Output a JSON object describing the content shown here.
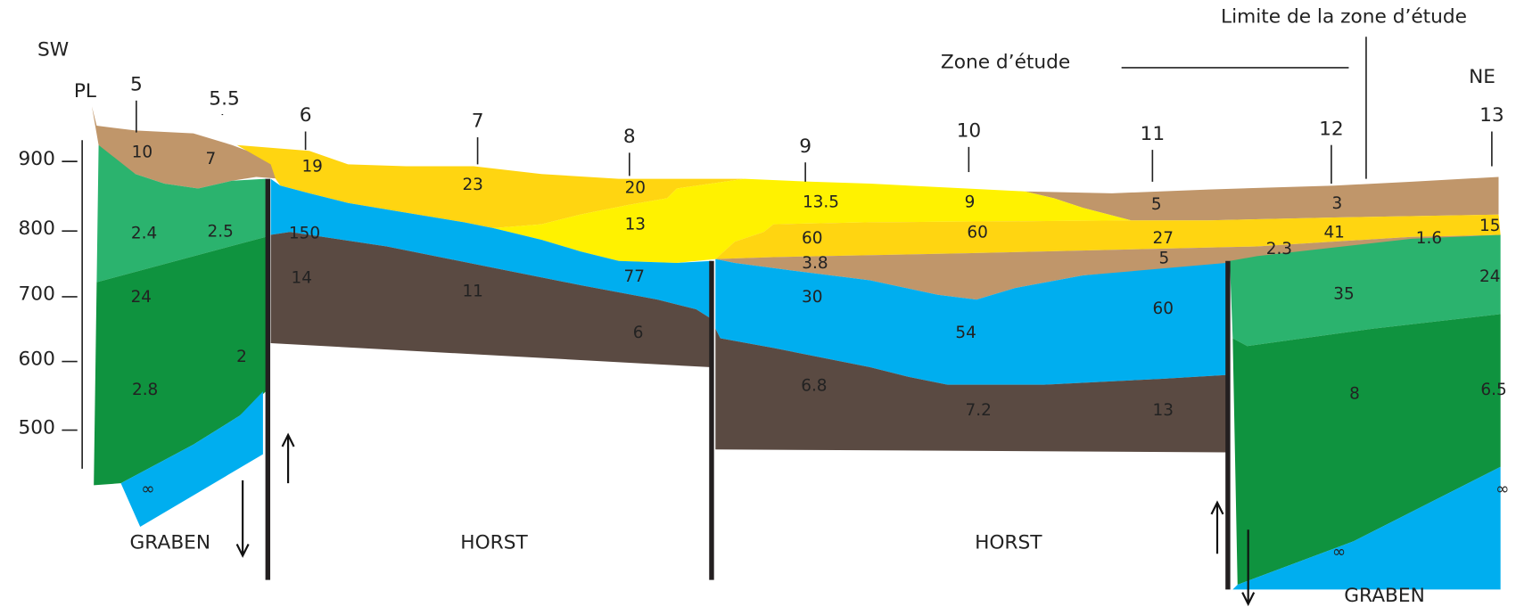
{
  "labels": {
    "sw": "SW",
    "ne": "NE",
    "pl": "PL",
    "study_zone": "Zone d’étude",
    "study_limit": "Limite de la zone d’étude"
  },
  "elevations": [
    "900",
    "800",
    "700",
    "600",
    "500"
  ],
  "stations": [
    "5",
    "5.5",
    "6",
    "7",
    "8",
    "9",
    "10",
    "11",
    "12",
    "13"
  ],
  "layer_values": [
    "10",
    "7",
    "2.4",
    "2.5",
    "24",
    "2",
    "2.8",
    "∞",
    "19",
    "23",
    "20",
    "150",
    "13",
    "13.5",
    "9",
    "5",
    "3",
    "60",
    "60",
    "27",
    "41",
    "15",
    "3.8",
    "5",
    "2.3",
    "1.6",
    "14",
    "11",
    "77",
    "6",
    "30",
    "54",
    "60",
    "35",
    "24",
    "6.8",
    "7.2",
    "13",
    "8",
    "6.5",
    "∞",
    "∞"
  ],
  "structures": [
    "GRABEN",
    "HORST",
    "HORST",
    "GRABEN"
  ]
}
